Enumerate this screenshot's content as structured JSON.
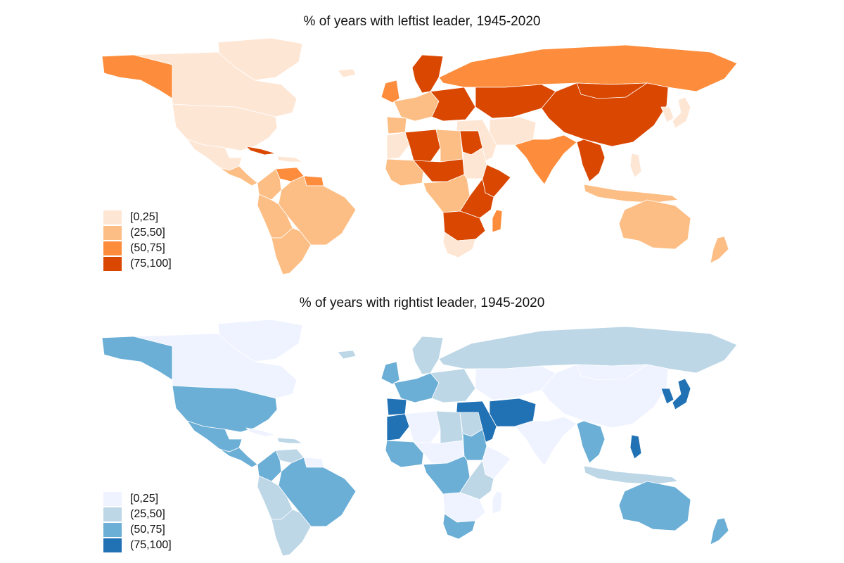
{
  "maps": [
    {
      "title": "% of years with leftist leader, 1945-2020",
      "legend": [
        {
          "label": "[0,25]",
          "color": "#fee6d5"
        },
        {
          "label": "(25,50]",
          "color": "#fdbe85"
        },
        {
          "label": "(50,75]",
          "color": "#fd8d3c"
        },
        {
          "label": "(75,100]",
          "color": "#d94701"
        }
      ],
      "regions": {
        "greenland": 0,
        "canada": 0,
        "alaska": 2,
        "usa": 0,
        "mexico": 0,
        "central_america": 1,
        "cuba": 3,
        "caribbean": 0,
        "venezuela": 2,
        "colombia": 1,
        "guianas": 2,
        "brazil": 1,
        "andes": 1,
        "southern_cone": 1,
        "iceland": 0,
        "scandinavia": 3,
        "uk_ireland": 2,
        "western_europe": 1,
        "iberia": 1,
        "eastern_europe": 3,
        "russia": 2,
        "central_asia": 3,
        "china": 3,
        "mongolia": 3,
        "korea_japan": 0,
        "middle_east": 0,
        "iran_afgh": 0,
        "india": 2,
        "se_asia_mainland": 3,
        "indonesia": 1,
        "philippines": 0,
        "australia": 1,
        "new_zealand": 1,
        "north_africa_west": 0,
        "algeria": 3,
        "libya": 1,
        "egypt": 3,
        "west_africa": 1,
        "sahel": 3,
        "sudan": 0,
        "horn": 3,
        "central_africa": 1,
        "east_africa": 3,
        "southern_africa": 3,
        "south_africa": 0,
        "madagascar": 2
      }
    },
    {
      "title": "% of years with rightist leader, 1945-2020",
      "legend": [
        {
          "label": "[0,25]",
          "color": "#eff3ff"
        },
        {
          "label": "(25,50]",
          "color": "#bdd7e7"
        },
        {
          "label": "(50,75]",
          "color": "#6baed6"
        },
        {
          "label": "(75,100]",
          "color": "#2171b5"
        }
      ],
      "regions": {
        "greenland": 0,
        "canada": 0,
        "alaska": 2,
        "usa": 2,
        "mexico": 2,
        "central_america": 2,
        "cuba": 0,
        "caribbean": 1,
        "venezuela": 1,
        "colombia": 2,
        "guianas": 0,
        "brazil": 2,
        "andes": 1,
        "southern_cone": 1,
        "iceland": 1,
        "scandinavia": 1,
        "uk_ireland": 2,
        "western_europe": 2,
        "iberia": 3,
        "eastern_europe": 1,
        "russia": 1,
        "central_asia": 0,
        "china": 0,
        "mongolia": 0,
        "korea_japan": 3,
        "middle_east": 3,
        "iran_afgh": 3,
        "india": 0,
        "se_asia_mainland": 2,
        "indonesia": 1,
        "philippines": 3,
        "australia": 2,
        "new_zealand": 2,
        "north_africa_west": 3,
        "algeria": 0,
        "libya": 1,
        "egypt": 1,
        "west_africa": 2,
        "sahel": 0,
        "sudan": 2,
        "horn": 0,
        "central_africa": 2,
        "east_africa": 1,
        "southern_africa": 0,
        "south_africa": 2,
        "madagascar": 0
      }
    }
  ]
}
